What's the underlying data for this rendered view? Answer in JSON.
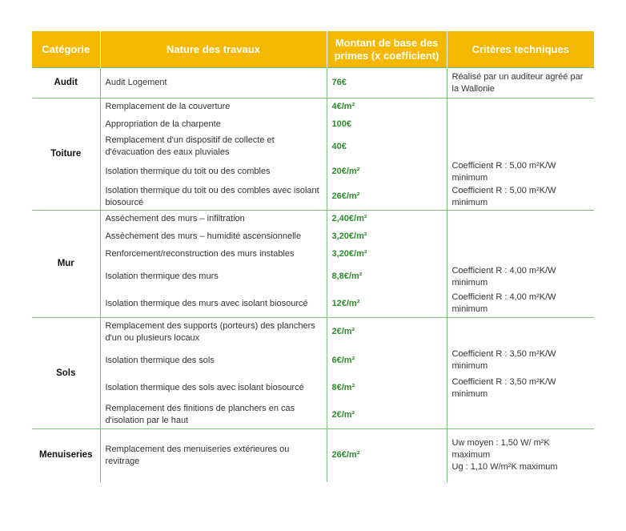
{
  "headers": [
    "Catégorie",
    "Nature des travaux",
    "Montant de base des primes (x coefficient)",
    "Critères techniques"
  ],
  "groups": [
    {
      "category": "Audit",
      "rows": [
        {
          "nature": "Audit Logement",
          "amount": "76€",
          "criteria": "Réalisé par un auditeur agréé par la Wallonie"
        }
      ]
    },
    {
      "category": "Toiture",
      "rows": [
        {
          "nature": "Remplacement de la couverture",
          "amount": "4€/m²",
          "criteria": ""
        },
        {
          "nature": "Appropriation de la charpente",
          "amount": "100€",
          "criteria": ""
        },
        {
          "nature": "Remplacement d'un dispositif de collecte et d'évacuation des eaux pluviales",
          "amount": "40€",
          "criteria": ""
        },
        {
          "nature": "Isolation thermique du toit ou des combles",
          "amount": "20€/m²",
          "criteria": "Coefficient R : 5,00 m²K/W minimum"
        },
        {
          "nature": "Isolation thermique du toit ou des combles avec isolant biosourcé",
          "amount": "26€/m²",
          "criteria": "Coefficient R : 5,00 m²K/W minimum"
        }
      ]
    },
    {
      "category": "Mur",
      "rows": [
        {
          "nature": "Assèchement des murs – infiltration",
          "amount": "2,40€/m²",
          "criteria": ""
        },
        {
          "nature": "Assèchement des murs – humidité ascensionnelle",
          "amount": "3,20€/m²",
          "criteria": ""
        },
        {
          "nature": "Renforcement/reconstruction des murs instables",
          "amount": "3,20€/m²",
          "criteria": ""
        },
        {
          "nature": "Isolation thermique des murs",
          "amount": "8,8€/m²",
          "criteria": "Coefficient R : 4,00 m²K/W minimum"
        },
        {
          "nature": "Isolation thermique des murs avec isolant biosourcé",
          "amount": "12€/m²",
          "criteria": "Coefficient R : 4,00 m²K/W minimum"
        }
      ]
    },
    {
      "category": "Sols",
      "rows": [
        {
          "nature": "Remplacement des supports (porteurs) des planchers d'un ou plusieurs locaux",
          "amount": "2€/m²",
          "criteria": ""
        },
        {
          "nature": "Isolation thermique des sols",
          "amount": "6€/m²",
          "criteria": "Coefficient R : 3,50 m²K/W minimum"
        },
        {
          "nature": "Isolation thermique des sols avec isolant biosourcé",
          "amount": "8€/m²",
          "criteria": "Coefficient R : 3,50 m²K/W minimum"
        },
        {
          "nature": "Remplacement des finitions de planchers en cas d'isolation par le haut",
          "amount": "2€/m²",
          "criteria": ""
        }
      ]
    },
    {
      "category": "Menuiseries",
      "rows": [
        {
          "nature": "Remplacement des menuiseries extérieures ou revitrage",
          "amount": "26€/m²",
          "criteria": "Uw moyen : 1,50 W/ m²K maximum\nUg : 1,10 W/m²K maximum"
        }
      ]
    }
  ]
}
